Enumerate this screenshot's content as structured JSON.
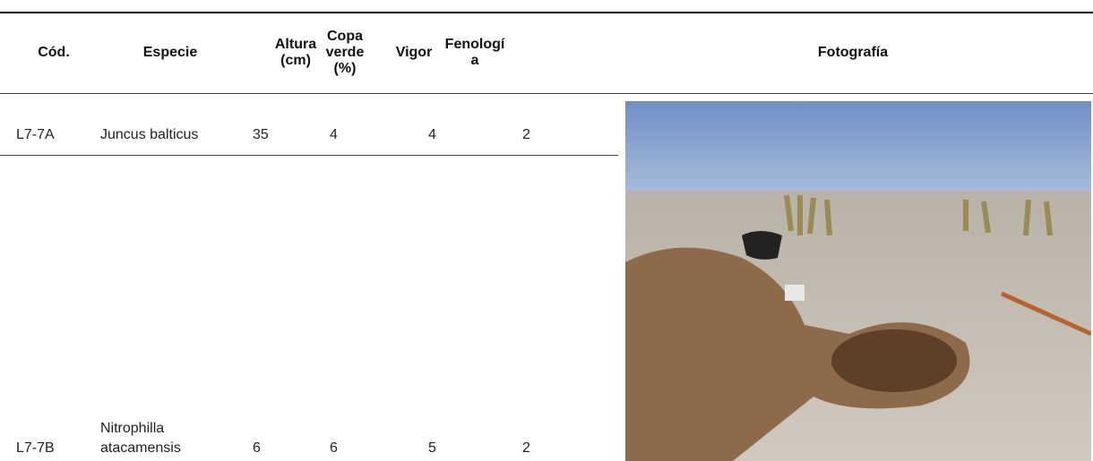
{
  "table": {
    "headers": [
      "Cód.",
      "Especie",
      "Altura (cm)",
      "Copa verde (%)",
      "Vigor",
      "Fenología",
      "Fotografía"
    ],
    "rows": [
      [
        "L7-7A",
        "Juncus balticus",
        35,
        4,
        4,
        2
      ],
      [
        "L7-7B",
        "Nitrophilla atacamensis",
        6,
        6,
        5,
        2
      ]
    ]
  }
}
